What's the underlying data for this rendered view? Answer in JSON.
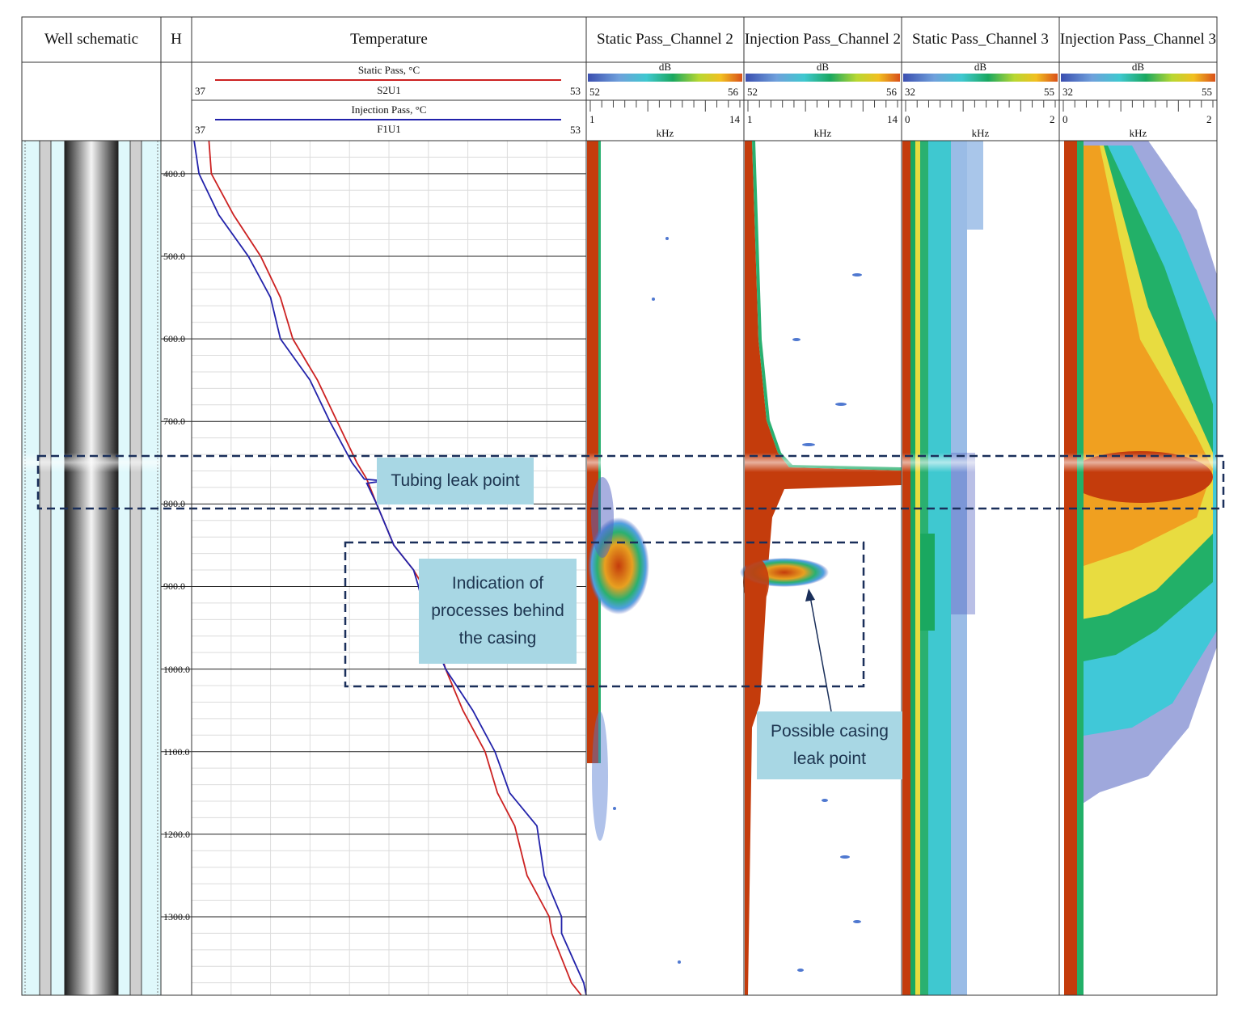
{
  "tracks": {
    "well_schematic": "Well schematic",
    "depth": "H",
    "temperature": "Temperature",
    "spectra": [
      "Static Pass_Channel 2",
      "Injection Pass_Channel 2",
      "Static Pass_Channel 3",
      "Injection Pass_Channel 3"
    ]
  },
  "temperature_curves": [
    {
      "name": "Static Pass, °C",
      "mnemonic": "S2U1",
      "min": "37",
      "max": "53",
      "color": "#cc2222"
    },
    {
      "name": "Injection Pass, °C",
      "mnemonic": "F1U1",
      "min": "37",
      "max": "53",
      "color": "#2222aa"
    }
  ],
  "spectra_scales": [
    {
      "db_label": "dB",
      "db_min": "52",
      "db_max": "56",
      "freq_min": "1",
      "freq_max": "14",
      "freq_unit": "kHz"
    },
    {
      "db_label": "dB",
      "db_min": "52",
      "db_max": "56",
      "freq_min": "1",
      "freq_max": "14",
      "freq_unit": "kHz"
    },
    {
      "db_label": "dB",
      "db_min": "32",
      "db_max": "55",
      "freq_min": "0",
      "freq_max": "2",
      "freq_unit": "kHz"
    },
    {
      "db_label": "dB",
      "db_min": "32",
      "db_max": "55",
      "freq_min": "0",
      "freq_max": "2",
      "freq_unit": "kHz"
    }
  ],
  "depth_labels": [
    "400.0",
    "500.0",
    "600.0",
    "700.0",
    "800.0",
    "900.0",
    "1000.0",
    "1100.0",
    "1200.0",
    "1300.0"
  ],
  "annotations": {
    "tubing_leak": "Tubing leak point",
    "behind_casing": "Indication of processes behind the casing",
    "casing_leak": "Possible casing leak point"
  },
  "colors": {
    "static": "#cc2222",
    "injection": "#2222aa",
    "callout_bg": "#a8d7e4",
    "hot": "#c43c0c"
  },
  "chart_data": {
    "type": "line",
    "title": "Temperature",
    "ylabel": "H",
    "ylim": [
      360,
      1395
    ],
    "xlim": [
      37,
      53
    ],
    "series": [
      {
        "name": "Static Pass, °C",
        "points": [
          [
            37.7,
            360
          ],
          [
            37.8,
            400
          ],
          [
            38.7,
            450
          ],
          [
            39.8,
            500
          ],
          [
            40.6,
            550
          ],
          [
            41.1,
            600
          ],
          [
            42.1,
            650
          ],
          [
            42.9,
            700
          ],
          [
            43.7,
            750
          ],
          [
            44.1,
            770
          ],
          [
            44.5,
            800
          ],
          [
            45.2,
            850
          ],
          [
            46.0,
            880
          ],
          [
            46.4,
            900
          ],
          [
            46.8,
            950
          ],
          [
            47.3,
            1000
          ],
          [
            48.0,
            1050
          ],
          [
            48.9,
            1100
          ],
          [
            49.4,
            1150
          ],
          [
            50.1,
            1190
          ],
          [
            50.6,
            1250
          ],
          [
            51.5,
            1300
          ],
          [
            51.6,
            1320
          ],
          [
            52.4,
            1380
          ],
          [
            52.8,
            1395
          ]
        ]
      },
      {
        "name": "Injection Pass, °C",
        "points": [
          [
            37.1,
            360
          ],
          [
            37.3,
            400
          ],
          [
            38.1,
            450
          ],
          [
            39.3,
            500
          ],
          [
            40.2,
            550
          ],
          [
            40.6,
            600
          ],
          [
            41.8,
            650
          ],
          [
            42.6,
            700
          ],
          [
            43.5,
            750
          ],
          [
            44.0,
            770
          ],
          [
            44.8,
            772
          ],
          [
            44.1,
            775
          ],
          [
            44.5,
            800
          ],
          [
            45.2,
            850
          ],
          [
            46.0,
            880
          ],
          [
            46.2,
            900
          ],
          [
            46.6,
            950
          ],
          [
            47.3,
            1000
          ],
          [
            48.4,
            1050
          ],
          [
            49.3,
            1100
          ],
          [
            49.9,
            1150
          ],
          [
            51.0,
            1190
          ],
          [
            51.3,
            1250
          ],
          [
            52.0,
            1300
          ],
          [
            52.0,
            1320
          ],
          [
            52.9,
            1380
          ],
          [
            53.0,
            1395
          ]
        ]
      }
    ]
  }
}
